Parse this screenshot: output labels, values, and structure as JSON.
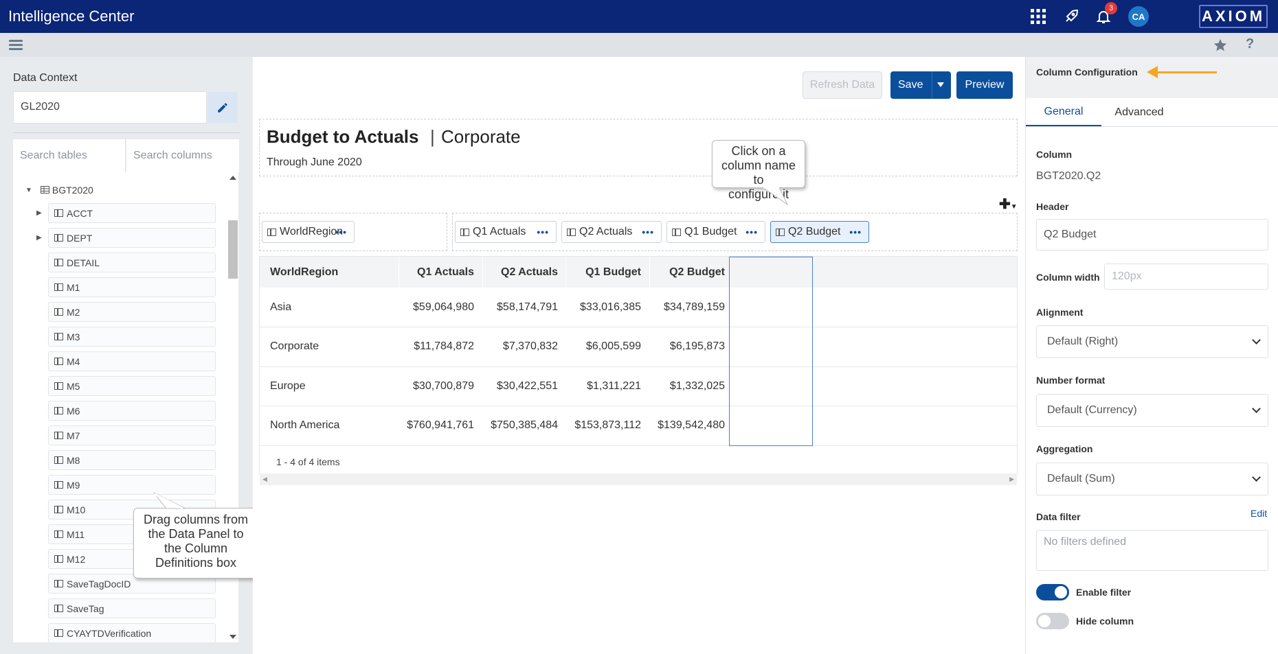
{
  "header": {
    "app_title": "Intelligence Center",
    "icons": [
      "apps-grid-icon",
      "rocket-icon",
      "bell-icon"
    ],
    "notifications_count": "3",
    "avatar_initials": "CA",
    "logo_text": "AXIOM"
  },
  "subbar": {
    "icons": [
      "hamburger-icon",
      "star-icon",
      "help-icon"
    ],
    "help_glyph": "?"
  },
  "left_panel": {
    "data_context_label": "Data Context",
    "data_context_value": "GL2020",
    "search_tables_placeholder": "Search tables",
    "search_columns_placeholder": "Search columns",
    "root_table": "BGT2020",
    "items": [
      {
        "label": "ACCT",
        "expandable": true
      },
      {
        "label": "DEPT",
        "expandable": true
      },
      {
        "label": "DETAIL",
        "expandable": false
      },
      {
        "label": "M1",
        "expandable": false
      },
      {
        "label": "M2",
        "expandable": false
      },
      {
        "label": "M3",
        "expandable": false
      },
      {
        "label": "M4",
        "expandable": false
      },
      {
        "label": "M5",
        "expandable": false
      },
      {
        "label": "M6",
        "expandable": false
      },
      {
        "label": "M7",
        "expandable": false
      },
      {
        "label": "M8",
        "expandable": false
      },
      {
        "label": "M9",
        "expandable": false
      },
      {
        "label": "M10",
        "expandable": false
      },
      {
        "label": "M11",
        "expandable": false
      },
      {
        "label": "M12",
        "expandable": false
      },
      {
        "label": "SaveTagDocID",
        "expandable": false
      },
      {
        "label": "SaveTag",
        "expandable": false
      },
      {
        "label": "CYAYTDVerification",
        "expandable": false
      }
    ],
    "callout": [
      "Drag columns from",
      "the Data Panel to",
      "the Column",
      "Definitions box"
    ]
  },
  "toolbar": {
    "refresh_label": "Refresh Data",
    "save_label": "Save",
    "preview_label": "Preview"
  },
  "report": {
    "title": "Budget to Actuals",
    "separator": "|",
    "subtitle": "Corporate",
    "date_text": "Through June 2020",
    "callout": [
      "Click on a",
      "column name to",
      "configure it"
    ]
  },
  "column_definitions": {
    "row_chips": [
      "WorldRegion"
    ],
    "value_chips": [
      "Q1 Actuals",
      "Q2 Actuals",
      "Q1 Budget",
      "Q2 Budget"
    ],
    "active_chip": "Q2 Budget"
  },
  "grid": {
    "headers": [
      "WorldRegion",
      "Q1 Actuals",
      "Q2 Actuals",
      "Q1 Budget",
      "Q2 Budget"
    ],
    "rows": [
      [
        "Asia",
        "$59,064,980",
        "$58,174,791",
        "$33,016,385",
        "$34,789,159"
      ],
      [
        "Corporate",
        "$11,784,872",
        "$7,370,832",
        "$6,005,599",
        "$6,195,873"
      ],
      [
        "Europe",
        "$30,700,879",
        "$30,422,551",
        "$1,311,221",
        "$1,332,025"
      ],
      [
        "North America",
        "$760,941,761",
        "$750,385,484",
        "$153,873,112",
        "$139,542,480"
      ]
    ],
    "pager_text": "1 - 4 of 4 items"
  },
  "right_panel": {
    "title": "Column Configuration",
    "tabs": [
      "General",
      "Advanced"
    ],
    "active_tab": "General",
    "column_label": "Column",
    "column_value": "BGT2020.Q2",
    "header_label": "Header",
    "header_value": "Q2 Budget",
    "width_label": "Column width",
    "width_placeholder": "120px",
    "alignment_label": "Alignment",
    "alignment_value": "Default (Right)",
    "number_format_label": "Number format",
    "number_format_value": "Default (Currency)",
    "aggregation_label": "Aggregation",
    "aggregation_value": "Default (Sum)",
    "data_filter_label": "Data filter",
    "edit_label": "Edit",
    "filter_placeholder": "No filters defined",
    "enable_filter_label": "Enable filter",
    "enable_filter_on": true,
    "hide_column_label": "Hide column",
    "hide_column_on": false
  },
  "colors": {
    "topbar": "#0b2577",
    "primary": "#0b4f9c",
    "arrow": "#f5a623",
    "badge": "#e03b3b"
  }
}
